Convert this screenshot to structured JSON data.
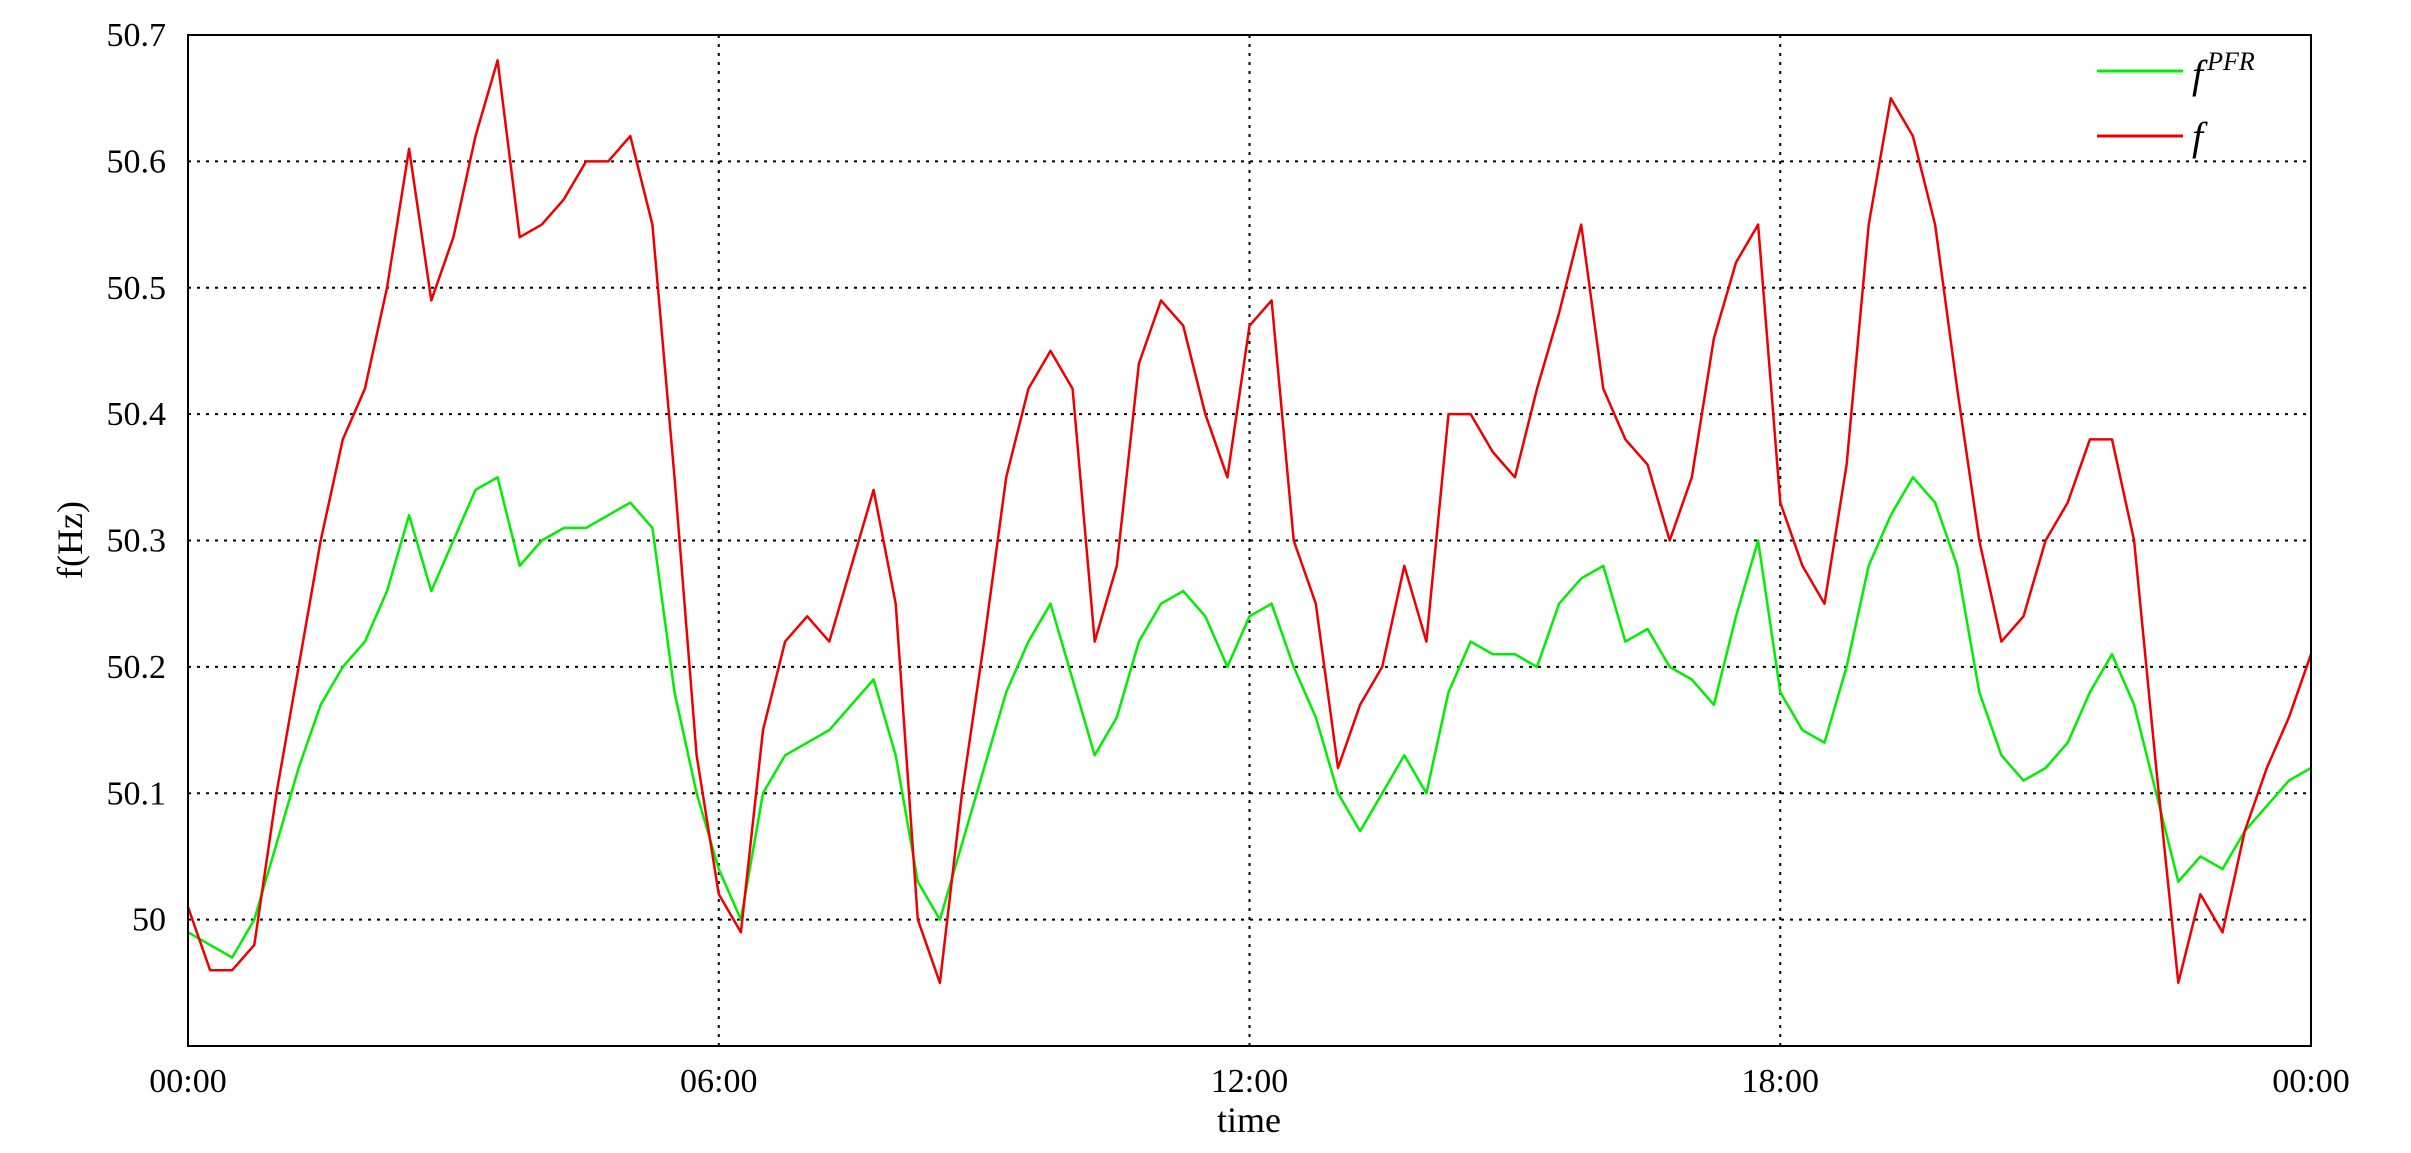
{
  "chart_data": {
    "type": "line",
    "xlabel": "time",
    "ylabel": "f(Hz)",
    "xlim": [
      0,
      24
    ],
    "ylim": [
      49.9,
      50.7
    ],
    "x_ticks": [
      {
        "value": 0,
        "label": "00:00"
      },
      {
        "value": 6,
        "label": "06:00"
      },
      {
        "value": 12,
        "label": "12:00"
      },
      {
        "value": 18,
        "label": "18:00"
      },
      {
        "value": 24,
        "label": "00:00"
      }
    ],
    "y_ticks": [
      {
        "value": 50.0,
        "label": "50"
      },
      {
        "value": 50.1,
        "label": "50.1"
      },
      {
        "value": 50.2,
        "label": "50.2"
      },
      {
        "value": 50.3,
        "label": "50.3"
      },
      {
        "value": 50.4,
        "label": "50.4"
      },
      {
        "value": 50.5,
        "label": "50.5"
      },
      {
        "value": 50.6,
        "label": "50.6"
      },
      {
        "value": 50.7,
        "label": "50.7"
      }
    ],
    "grid": true,
    "legend_position": "top-right",
    "series": [
      {
        "name": "f",
        "name_superscript": "PFR",
        "color": "#00ee00",
        "x": [
          0,
          0.25,
          0.5,
          0.75,
          1.0,
          1.25,
          1.5,
          1.75,
          2.0,
          2.25,
          2.5,
          2.75,
          3.0,
          3.25,
          3.5,
          3.75,
          4.0,
          4.25,
          4.5,
          4.75,
          5.0,
          5.25,
          5.5,
          5.75,
          6.0,
          6.25,
          6.5,
          6.75,
          7.0,
          7.25,
          7.5,
          7.75,
          8.0,
          8.25,
          8.5,
          8.75,
          9.0,
          9.25,
          9.5,
          9.75,
          10.0,
          10.25,
          10.5,
          10.75,
          11.0,
          11.25,
          11.5,
          11.75,
          12.0,
          12.25,
          12.5,
          12.75,
          13.0,
          13.25,
          13.5,
          13.75,
          14.0,
          14.25,
          14.5,
          14.75,
          15.0,
          15.25,
          15.5,
          15.75,
          16.0,
          16.25,
          16.5,
          16.75,
          17.0,
          17.25,
          17.5,
          17.75,
          18.0,
          18.25,
          18.5,
          18.75,
          19.0,
          19.25,
          19.5,
          19.75,
          20.0,
          20.25,
          20.5,
          20.75,
          21.0,
          21.25,
          21.5,
          21.75,
          22.0,
          22.25,
          22.5,
          22.75,
          23.0,
          23.25,
          23.5,
          23.75,
          24.0
        ],
        "y": [
          49.99,
          49.98,
          49.97,
          50.0,
          50.06,
          50.12,
          50.17,
          50.2,
          50.22,
          50.26,
          50.32,
          50.26,
          50.3,
          50.34,
          50.35,
          50.28,
          50.3,
          50.31,
          50.31,
          50.32,
          50.33,
          50.31,
          50.18,
          50.1,
          50.04,
          50.0,
          50.1,
          50.13,
          50.14,
          50.15,
          50.17,
          50.19,
          50.13,
          50.03,
          50.0,
          50.06,
          50.12,
          50.18,
          50.22,
          50.25,
          50.19,
          50.13,
          50.16,
          50.22,
          50.25,
          50.26,
          50.24,
          50.2,
          50.24,
          50.25,
          50.2,
          50.16,
          50.1,
          50.07,
          50.1,
          50.13,
          50.1,
          50.18,
          50.22,
          50.21,
          50.21,
          50.2,
          50.25,
          50.27,
          50.28,
          50.22,
          50.23,
          50.2,
          50.19,
          50.17,
          50.24,
          50.3,
          50.18,
          50.15,
          50.14,
          50.2,
          50.28,
          50.32,
          50.35,
          50.33,
          50.28,
          50.18,
          50.13,
          50.11,
          50.12,
          50.14,
          50.18,
          50.21,
          50.17,
          50.1,
          50.03,
          50.05,
          50.04,
          50.07,
          50.09,
          50.11,
          50.12
        ]
      },
      {
        "name": "f",
        "name_superscript": "",
        "color": "#ee0000",
        "x": [
          0,
          0.25,
          0.5,
          0.75,
          1.0,
          1.25,
          1.5,
          1.75,
          2.0,
          2.25,
          2.5,
          2.75,
          3.0,
          3.25,
          3.5,
          3.75,
          4.0,
          4.25,
          4.5,
          4.75,
          5.0,
          5.25,
          5.5,
          5.75,
          6.0,
          6.25,
          6.5,
          6.75,
          7.0,
          7.25,
          7.5,
          7.75,
          8.0,
          8.25,
          8.5,
          8.75,
          9.0,
          9.25,
          9.5,
          9.75,
          10.0,
          10.25,
          10.5,
          10.75,
          11.0,
          11.25,
          11.5,
          11.75,
          12.0,
          12.25,
          12.5,
          12.75,
          13.0,
          13.25,
          13.5,
          13.75,
          14.0,
          14.25,
          14.5,
          14.75,
          15.0,
          15.25,
          15.5,
          15.75,
          16.0,
          16.25,
          16.5,
          16.75,
          17.0,
          17.25,
          17.5,
          17.75,
          18.0,
          18.25,
          18.5,
          18.75,
          19.0,
          19.25,
          19.5,
          19.75,
          20.0,
          20.25,
          20.5,
          20.75,
          21.0,
          21.25,
          21.5,
          21.75,
          22.0,
          22.25,
          22.5,
          22.75,
          23.0,
          23.25,
          23.5,
          23.75,
          24.0
        ],
        "y": [
          50.01,
          49.96,
          49.96,
          49.98,
          50.1,
          50.2,
          50.3,
          50.38,
          50.42,
          50.5,
          50.61,
          50.49,
          50.54,
          50.62,
          50.68,
          50.54,
          50.55,
          50.57,
          50.6,
          50.6,
          50.62,
          50.55,
          50.35,
          50.13,
          50.02,
          49.99,
          50.15,
          50.22,
          50.24,
          50.22,
          50.28,
          50.34,
          50.25,
          50.0,
          49.95,
          50.1,
          50.22,
          50.35,
          50.42,
          50.45,
          50.42,
          50.22,
          50.28,
          50.44,
          50.49,
          50.47,
          50.4,
          50.35,
          50.47,
          50.49,
          50.3,
          50.25,
          50.12,
          50.17,
          50.2,
          50.28,
          50.22,
          50.4,
          50.4,
          50.37,
          50.35,
          50.42,
          50.48,
          50.55,
          50.42,
          50.38,
          50.36,
          50.3,
          50.35,
          50.46,
          50.52,
          50.55,
          50.33,
          50.28,
          50.25,
          50.36,
          50.55,
          50.65,
          50.62,
          50.55,
          50.42,
          50.3,
          50.22,
          50.24,
          50.3,
          50.33,
          50.38,
          50.38,
          50.3,
          50.12,
          49.95,
          50.02,
          49.99,
          50.07,
          50.12,
          50.16,
          50.21
        ]
      }
    ]
  }
}
